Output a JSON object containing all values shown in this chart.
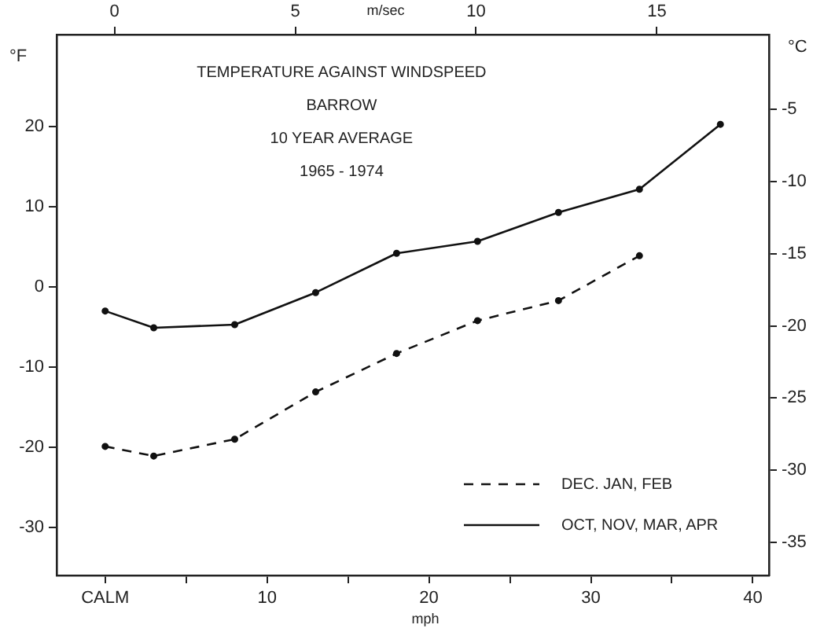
{
  "chart_data": {
    "type": "line",
    "title": "TEMPERATURE AGAINST WINDSPEED",
    "annotations": [
      "BARROW",
      "10 YEAR AVERAGE",
      "1965 - 1974"
    ],
    "xlabel": "mph",
    "ylabel": "°F",
    "y2label": "°C",
    "x2label": "m/sec",
    "x": [
      0,
      3,
      8,
      13,
      18,
      23,
      28,
      33,
      38
    ],
    "series": [
      {
        "name": "DEC. JAN, FEB",
        "color": "#111111",
        "line_style": "dashed",
        "x": [
          0,
          3,
          8,
          13,
          18,
          23,
          28,
          33
        ],
        "values": [
          -19.9,
          -21.1,
          -19.0,
          -13.1,
          -8.3,
          -4.2,
          -1.7,
          3.9
        ]
      },
      {
        "name": "OCT, NOV, MAR, APR",
        "color": "#111111",
        "line_style": "solid",
        "values": [
          -3.0,
          -5.1,
          -4.7,
          -0.7,
          4.2,
          5.7,
          9.3,
          12.2,
          20.3
        ]
      }
    ],
    "xlim": [
      -3,
      41
    ],
    "xticks": [
      {
        "value": 0,
        "label": "CALM"
      },
      {
        "value": 5,
        "label": null
      },
      10,
      {
        "value": 15,
        "label": null
      },
      20,
      {
        "value": 25,
        "label": null
      },
      30,
      {
        "value": 35,
        "label": null
      },
      40
    ],
    "x2lim": [
      -1.6,
      18.1
    ],
    "x2ticks": [
      0,
      5,
      10,
      15
    ],
    "ylim": [
      -36,
      31.5
    ],
    "yticks": [
      20,
      10,
      0,
      -10,
      -20,
      -30
    ],
    "y2lim": [
      -37.3,
      0.2
    ],
    "y2ticks": [
      -5,
      -10,
      -15,
      -20,
      -25,
      -30,
      -35
    ],
    "grid": false,
    "legend": "bottom right",
    "marker": "circle"
  }
}
